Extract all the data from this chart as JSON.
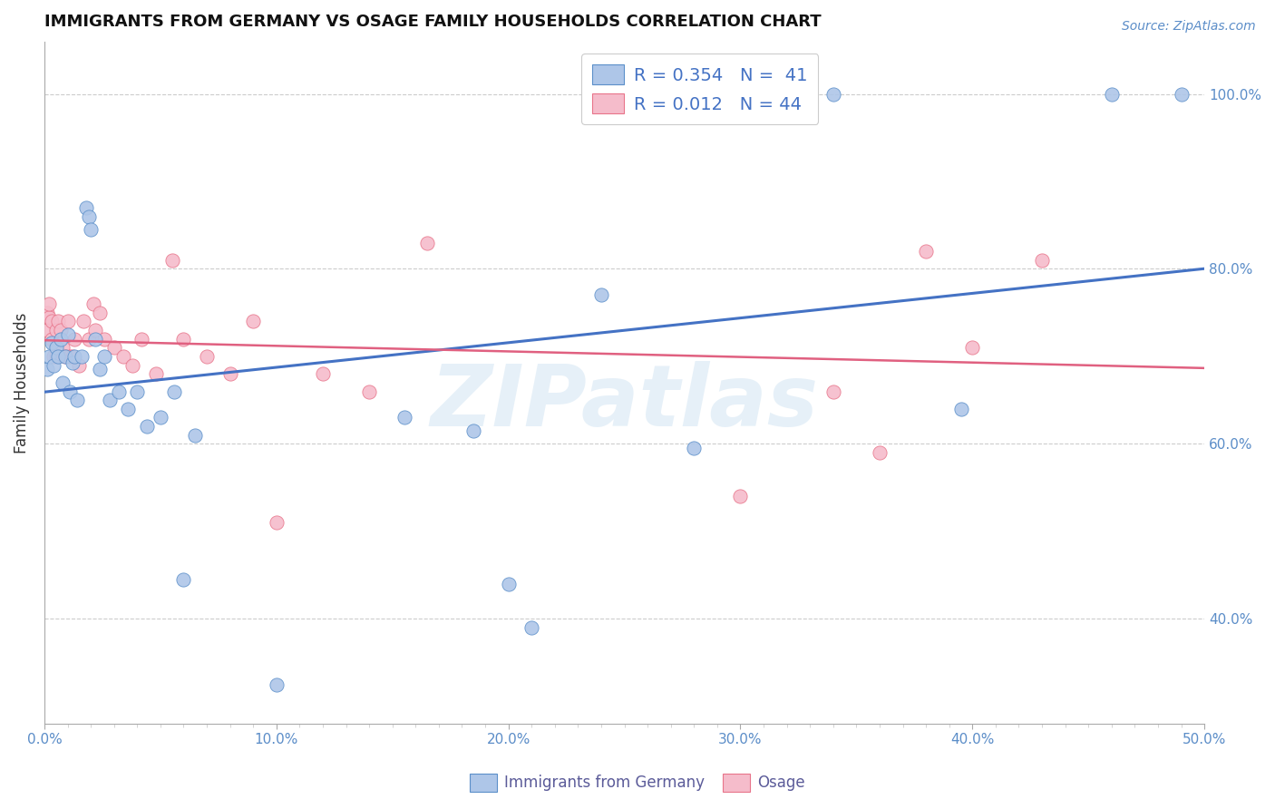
{
  "title": "IMMIGRANTS FROM GERMANY VS OSAGE FAMILY HOUSEHOLDS CORRELATION CHART",
  "source": "Source: ZipAtlas.com",
  "ylabel": "Family Households",
  "xmin": 0.0,
  "xmax": 0.5,
  "ymin": 0.28,
  "ymax": 1.06,
  "legend_blue_r": "R = 0.354",
  "legend_blue_n": "N =  41",
  "legend_pink_r": "R = 0.012",
  "legend_pink_n": "N = 44",
  "legend_label1": "Immigrants from Germany",
  "legend_label2": "Osage",
  "blue_x": [
    0.001,
    0.002,
    0.003,
    0.004,
    0.005,
    0.006,
    0.007,
    0.008,
    0.009,
    0.01,
    0.011,
    0.012,
    0.013,
    0.014,
    0.016,
    0.018,
    0.019,
    0.02,
    0.022,
    0.024,
    0.026,
    0.028,
    0.032,
    0.036,
    0.04,
    0.044,
    0.05,
    0.056,
    0.06,
    0.065,
    0.1,
    0.155,
    0.185,
    0.2,
    0.21,
    0.24,
    0.28,
    0.34,
    0.395,
    0.46,
    0.49
  ],
  "blue_y": [
    0.685,
    0.7,
    0.715,
    0.69,
    0.71,
    0.7,
    0.72,
    0.67,
    0.7,
    0.725,
    0.66,
    0.693,
    0.7,
    0.65,
    0.7,
    0.87,
    0.86,
    0.845,
    0.72,
    0.685,
    0.7,
    0.65,
    0.66,
    0.64,
    0.66,
    0.62,
    0.63,
    0.66,
    0.445,
    0.61,
    0.325,
    0.63,
    0.615,
    0.44,
    0.39,
    0.77,
    0.595,
    1.0,
    0.64,
    1.0,
    1.0
  ],
  "pink_x": [
    0.001,
    0.001,
    0.002,
    0.002,
    0.003,
    0.003,
    0.004,
    0.005,
    0.005,
    0.006,
    0.007,
    0.008,
    0.009,
    0.01,
    0.011,
    0.012,
    0.013,
    0.015,
    0.017,
    0.019,
    0.021,
    0.022,
    0.024,
    0.026,
    0.03,
    0.034,
    0.038,
    0.042,
    0.048,
    0.055,
    0.06,
    0.07,
    0.08,
    0.09,
    0.1,
    0.12,
    0.14,
    0.165,
    0.3,
    0.34,
    0.36,
    0.38,
    0.4,
    0.43
  ],
  "pink_y": [
    0.73,
    0.75,
    0.745,
    0.76,
    0.72,
    0.74,
    0.7,
    0.73,
    0.7,
    0.74,
    0.73,
    0.71,
    0.7,
    0.74,
    0.7,
    0.7,
    0.72,
    0.69,
    0.74,
    0.72,
    0.76,
    0.73,
    0.75,
    0.72,
    0.71,
    0.7,
    0.69,
    0.72,
    0.68,
    0.81,
    0.72,
    0.7,
    0.68,
    0.74,
    0.51,
    0.68,
    0.66,
    0.83,
    0.54,
    0.66,
    0.59,
    0.82,
    0.71,
    0.81
  ],
  "blue_color": "#aec6e8",
  "pink_color": "#f5bccb",
  "blue_edge_color": "#5b8fc9",
  "pink_edge_color": "#e8748a",
  "blue_line_color": "#4472c4",
  "pink_line_color": "#e06080",
  "watermark": "ZIPatlas",
  "grid_color": "#cccccc",
  "yticks": [
    0.4,
    0.6,
    0.8,
    1.0
  ],
  "ytick_labels": [
    "40.0%",
    "60.0%",
    "80.0%",
    "100.0%"
  ],
  "xticks": [
    0.0,
    0.1,
    0.2,
    0.3,
    0.4,
    0.5
  ],
  "xtick_labels": [
    "0.0%",
    "10.0%",
    "20.0%",
    "30.0%",
    "40.0%",
    "50.0%"
  ]
}
